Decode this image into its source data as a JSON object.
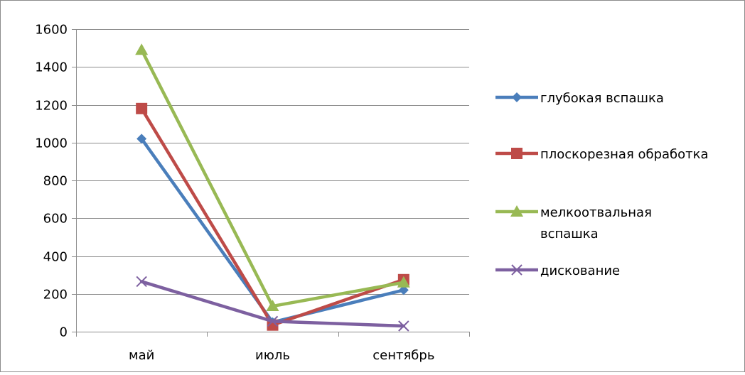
{
  "chart_data": {
    "type": "line",
    "categories": [
      "май",
      "июль",
      "сентябрь"
    ],
    "series": [
      {
        "name": "глубокая вспашка",
        "values": [
          1020,
          50,
          220
        ],
        "color": "#4a7ebb",
        "marker": "diamond"
      },
      {
        "name": "плоскорезная обработка",
        "values": [
          1180,
          35,
          275
        ],
        "color": "#be4b48",
        "marker": "square"
      },
      {
        "name": "мелкоотвальная вспашка",
        "values": [
          1490,
          135,
          260
        ],
        "color": "#98b954",
        "marker": "triangle"
      },
      {
        "name": "дискование",
        "values": [
          265,
          55,
          30
        ],
        "color": "#7d60a0",
        "marker": "x"
      }
    ],
    "legend_lines": [
      [
        "глубокая вспашка"
      ],
      [
        "плоскорезная обработка"
      ],
      [
        "мелкоотвальная",
        "вспашка"
      ],
      [
        "дискование"
      ]
    ],
    "yticks": [
      "0",
      "200",
      "400",
      "600",
      "800",
      "1000",
      "1200",
      "1400",
      "1600"
    ],
    "ylim": [
      0,
      1600
    ],
    "grid": true,
    "legend_position": "right"
  }
}
